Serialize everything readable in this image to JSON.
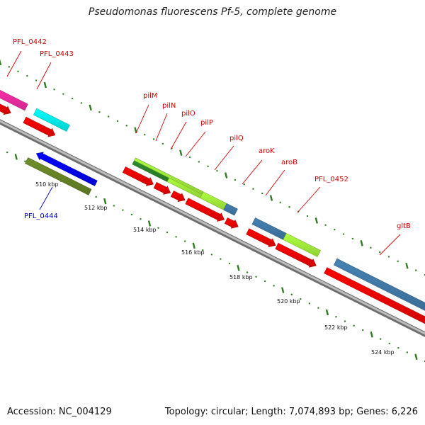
{
  "title": "Pseudomonas fluorescens Pf-5, complete genome",
  "footer": {
    "accession": "Accession: NC_004129",
    "summary": "Topology: circular; Length: 7,074,893 bp; Genes: 6,226"
  },
  "colors": {
    "backbone": "#9e9e9e",
    "tick": "#2e7d1e",
    "label_red": "#d40000",
    "label_blue": "#0000c0",
    "gene_red": "#ff0000",
    "gene_blue": "#0000ff",
    "gene_olive": "#6f8f2a",
    "magenta": "#ff2fae",
    "cyan": "#00ffff",
    "lime": "#b0ff40",
    "darkgreen": "#2f8f2f",
    "steelblue": "#4682b4"
  },
  "scale_labels": [
    "510 kbp",
    "512 kbp",
    "514 kbp",
    "516 kbp",
    "518 kbp",
    "520 kbp",
    "522 kbp",
    "524 kbp"
  ],
  "gene_labels": [
    {
      "text": "PFL_0442",
      "color": "red"
    },
    {
      "text": "PFL_0443",
      "color": "red"
    },
    {
      "text": "pilM",
      "color": "red"
    },
    {
      "text": "pilN",
      "color": "red"
    },
    {
      "text": "pilO",
      "color": "red"
    },
    {
      "text": "pilP",
      "color": "red"
    },
    {
      "text": "pilQ",
      "color": "red"
    },
    {
      "text": "aroK",
      "color": "red"
    },
    {
      "text": "aroB",
      "color": "red"
    },
    {
      "text": "PFL_0452",
      "color": "red"
    },
    {
      "text": "gltB",
      "color": "red"
    },
    {
      "text": "PFL_0444",
      "color": "blue"
    }
  ]
}
